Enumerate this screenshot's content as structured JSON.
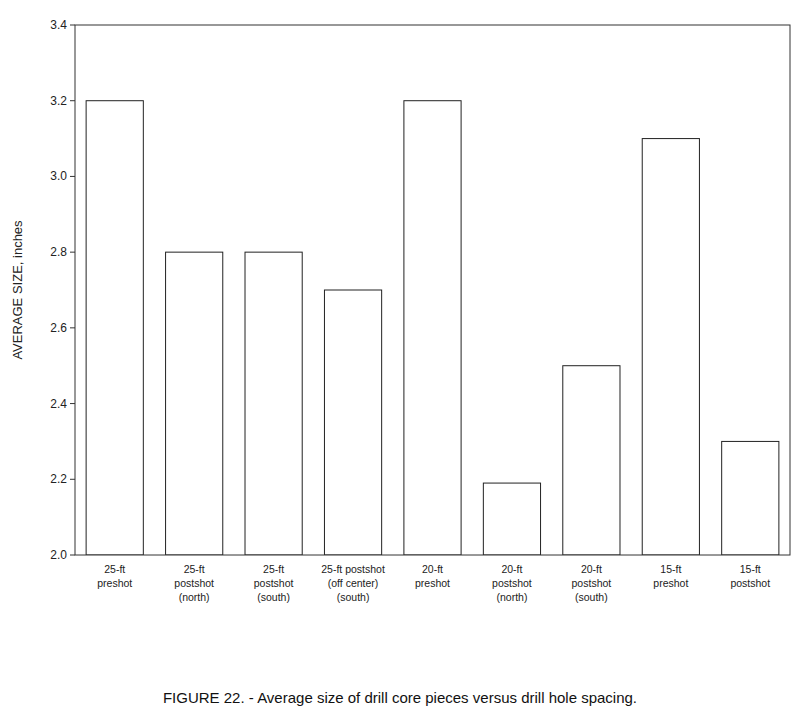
{
  "chart_data": {
    "type": "bar",
    "title": "FIGURE 22. - Average size of drill core pieces versus drill hole spacing.",
    "y_label": "AVERAGE SIZE, inches",
    "categories": [
      "25-ft\npreshot",
      "25-ft\npostshot\n(north)",
      "25-ft\npostshot\n(south)",
      "25-ft postshot\n(off center)\n(south)",
      "20-ft\npreshot",
      "20-ft\npostshot\n(north)",
      "20-ft\npostshot\n(south)",
      "15-ft\npreshot",
      "15-ft\npostshot"
    ],
    "values": [
      3.2,
      2.8,
      2.8,
      2.7,
      3.2,
      2.19,
      2.5,
      3.1,
      2.3
    ],
    "color": "white",
    "ylim": [
      2.0,
      3.4
    ],
    "yticks": [
      {
        "value": 2.0,
        "label": "2.0"
      },
      2.2,
      2.4,
      2.6,
      2.8,
      {
        "value": 3.0,
        "label": "3.0"
      },
      3.2,
      3.4
    ],
    "grid": false
  }
}
